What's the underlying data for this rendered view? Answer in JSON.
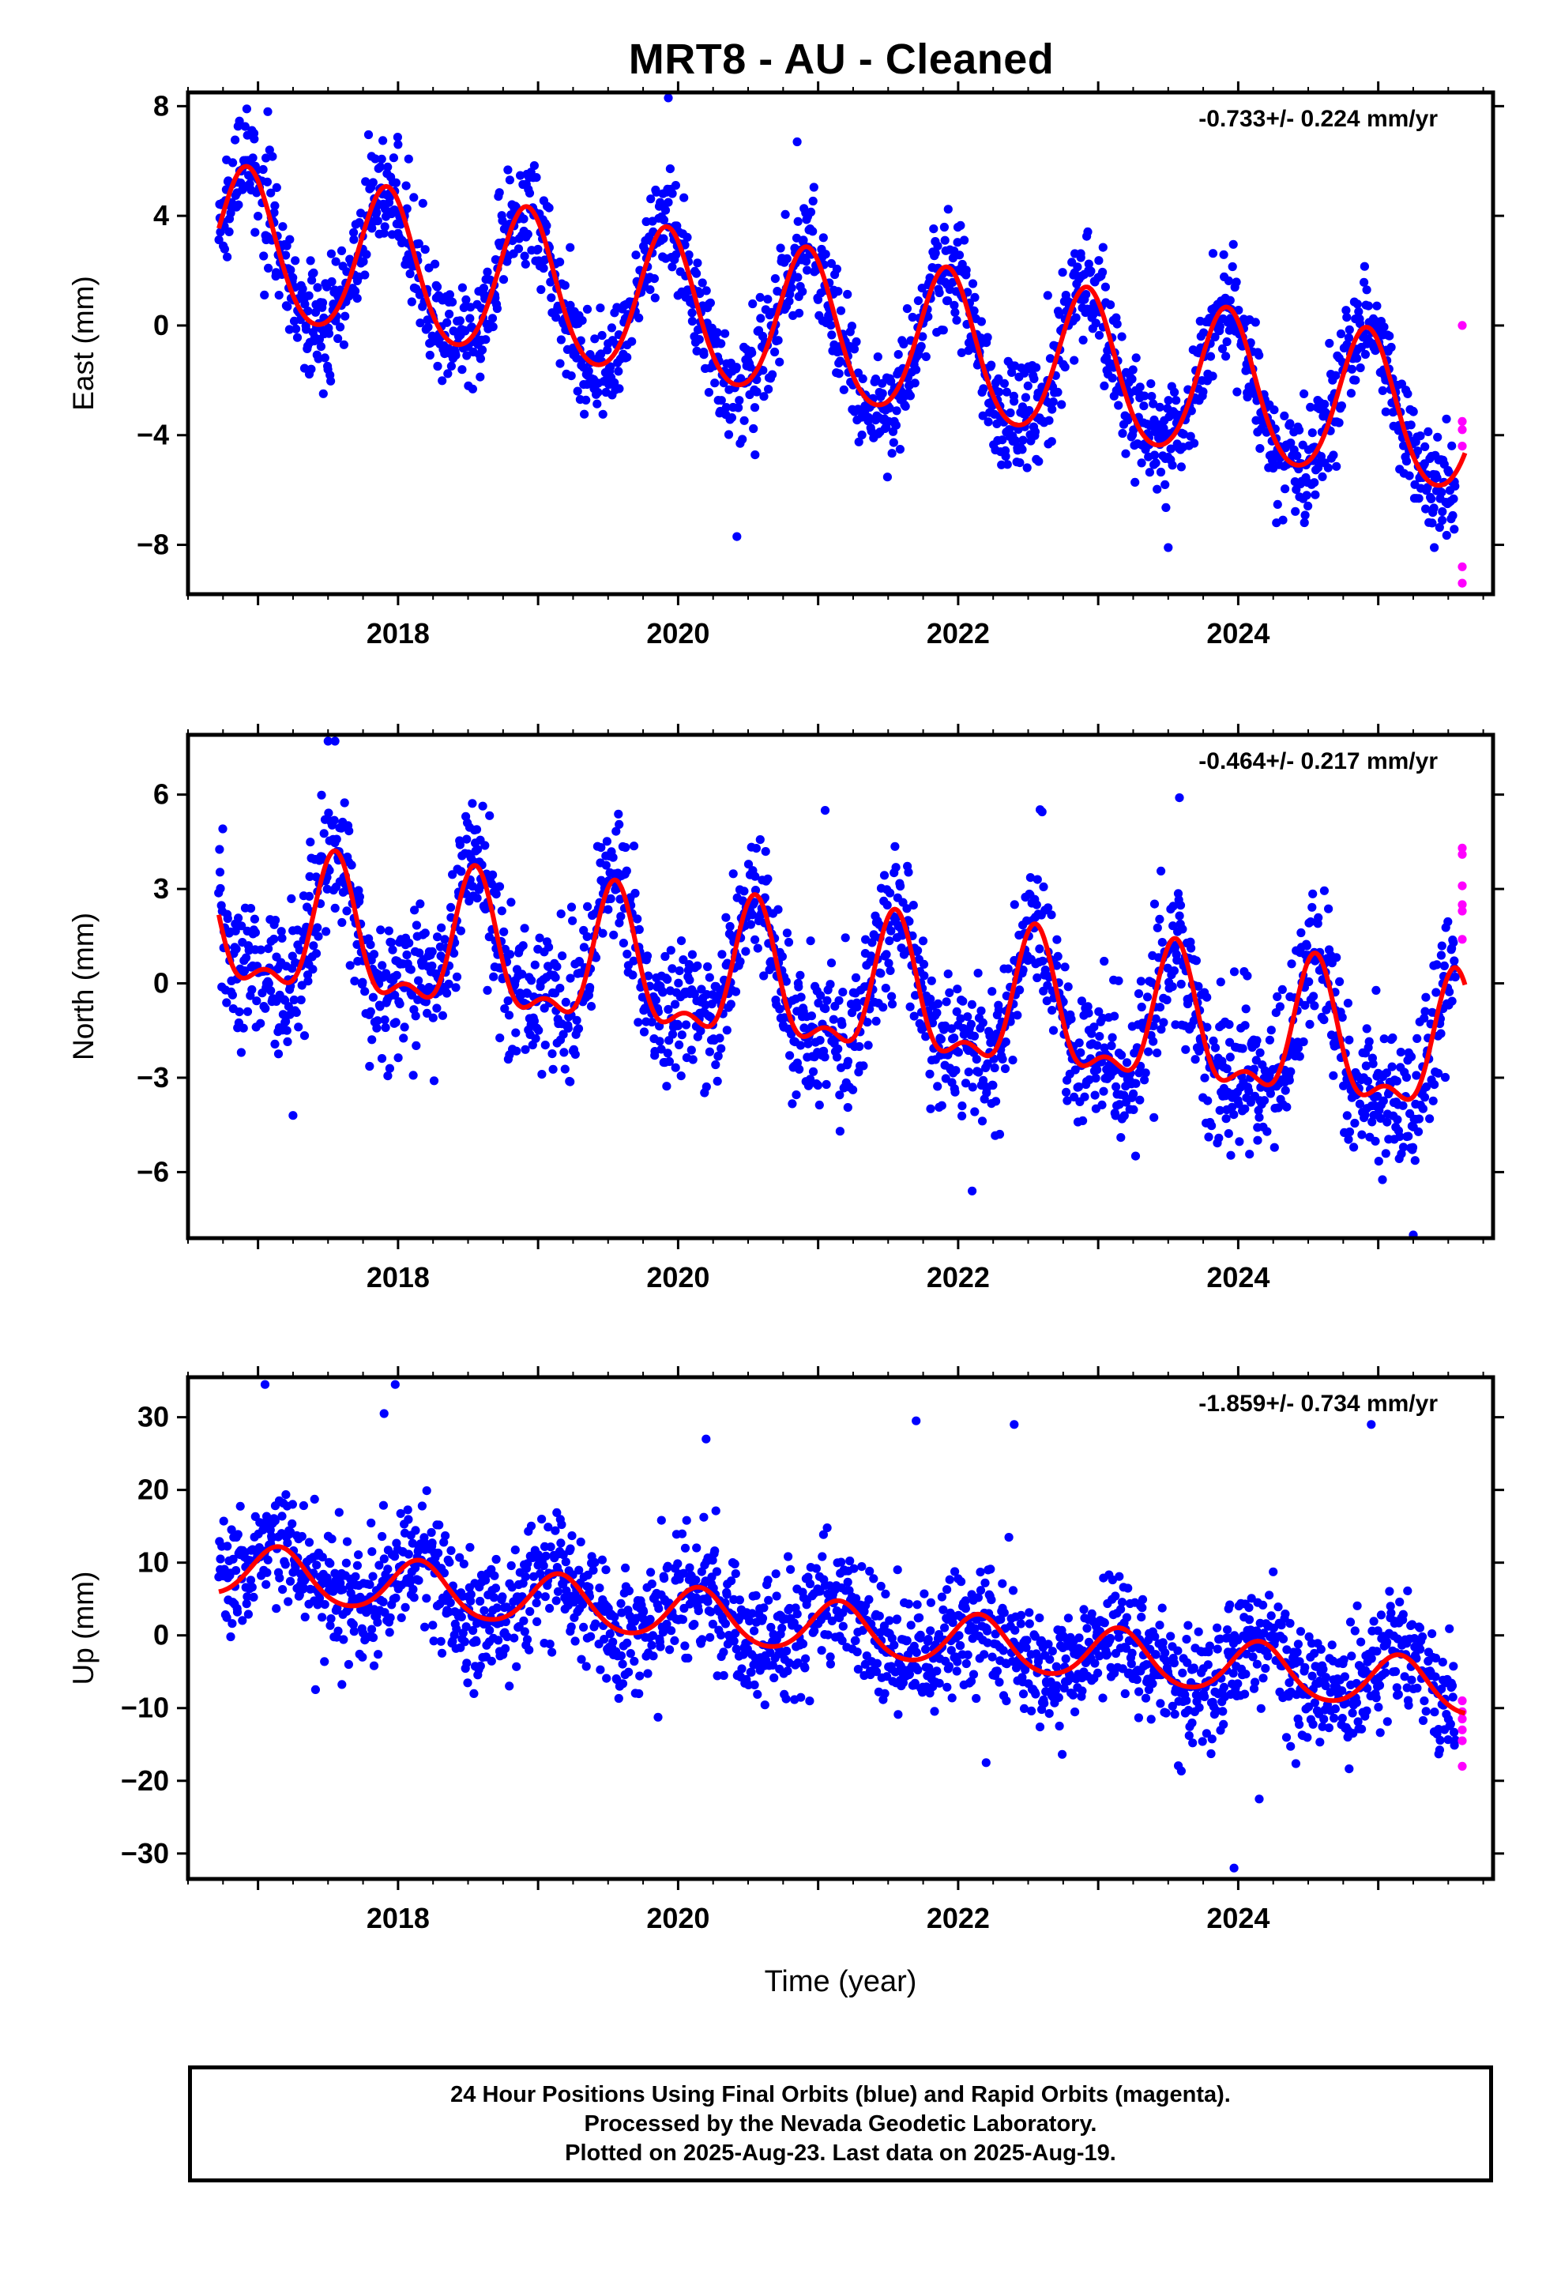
{
  "title": "MRT8  - AU - Cleaned",
  "colors": {
    "final_orbits": "#0000ff",
    "rapid_orbits": "#ff00ff",
    "model": "#ff0000",
    "frame": "#000000"
  },
  "footer": {
    "line1": "24 Hour Positions Using Final Orbits (blue) and Rapid Orbits (magenta).",
    "line2": "Processed by the Nevada Geodetic Laboratory.",
    "line3": "Plotted on 2025-Aug-23. Last data on 2025-Aug-19."
  },
  "chart_data": [
    {
      "type": "scatter",
      "ylabel": "East (mm)",
      "xlabel": "",
      "rate_label": "-0.733+/- 0.224 mm/yr",
      "xlim": [
        2016.5,
        2025.82
      ],
      "ylim": [
        -9.8,
        8.5
      ],
      "x_ticks": [
        2018,
        2020,
        2022,
        2024
      ],
      "y_ticks": [
        -8,
        -4,
        0,
        4,
        8
      ],
      "model": {
        "name": "",
        "trend": -0.733,
        "offset": 2.95,
        "annual_amp": 2.7,
        "annual_peak": 0.92,
        "semiannual_amp": 0.3,
        "semiannual_peak": 0.92,
        "noise_sd": 1.0
      },
      "series": [
        {
          "name": "",
          "color": "#0000ff",
          "x_start": 2016.72,
          "x_end": 2025.55,
          "n": 2050,
          "outliers": [
            [
              2016.92,
              7.9
            ],
            [
              2017.07,
              7.8
            ],
            [
              2019.93,
              8.3
            ],
            [
              2020.42,
              -7.7
            ],
            [
              2020.85,
              6.7
            ],
            [
              2023.5,
              -8.1
            ],
            [
              2025.4,
              -8.1
            ],
            [
              2018.0,
              6.6
            ]
          ]
        },
        {
          "name": "",
          "color": "#ff00ff",
          "points": [
            [
              2025.6,
              0.0
            ],
            [
              2025.6,
              -3.5
            ],
            [
              2025.6,
              -3.8
            ],
            [
              2025.6,
              -4.4
            ],
            [
              2025.6,
              -8.8
            ],
            [
              2025.6,
              -9.4
            ]
          ]
        }
      ]
    },
    {
      "type": "scatter",
      "ylabel": "North (mm)",
      "xlabel": "",
      "rate_label": "-0.464+/- 0.217 mm/yr",
      "xlim": [
        2016.5,
        2025.82
      ],
      "ylim": [
        -8.1,
        7.9
      ],
      "x_ticks": [
        2018,
        2020,
        2022,
        2024
      ],
      "y_ticks": [
        -6,
        -3,
        0,
        3,
        6
      ],
      "model": {
        "name": "",
        "trend": -0.464,
        "offset": 1.7,
        "annual_amp": 2.0,
        "annual_peak": 0.55,
        "semiannual_amp": 0.9,
        "semiannual_peak": 0.55,
        "noise_sd": 1.15
      },
      "series": [
        {
          "name": "",
          "color": "#0000ff",
          "x_start": 2016.72,
          "x_end": 2025.55,
          "n": 2050,
          "outliers": [
            [
              2017.5,
              7.7
            ],
            [
              2017.55,
              7.7
            ],
            [
              2021.05,
              5.5
            ],
            [
              2022.1,
              -6.6
            ],
            [
              2025.25,
              -8.0
            ],
            [
              2017.25,
              -4.2
            ],
            [
              2023.58,
              5.9
            ]
          ]
        },
        {
          "name": "",
          "color": "#ff00ff",
          "points": [
            [
              2025.6,
              4.3
            ],
            [
              2025.6,
              4.1
            ],
            [
              2025.6,
              3.1
            ],
            [
              2025.6,
              2.5
            ],
            [
              2025.6,
              2.3
            ],
            [
              2025.6,
              1.4
            ]
          ]
        }
      ]
    },
    {
      "type": "scatter",
      "ylabel": "Up (mm)",
      "xlabel": "Time (year)",
      "rate_label": "-1.859+/- 0.734 mm/yr",
      "xlim": [
        2016.5,
        2025.82
      ],
      "ylim": [
        -33.5,
        35.5
      ],
      "x_ticks": [
        2018,
        2020,
        2022,
        2024
      ],
      "y_ticks": [
        -30,
        -20,
        -10,
        0,
        10,
        20,
        30
      ],
      "model": {
        "name": "",
        "trend": -1.859,
        "offset": 9.0,
        "annual_amp": 3.6,
        "annual_peak": 0.15,
        "semiannual_amp": 0.4,
        "semiannual_peak": 0.15,
        "noise_sd": 4.3
      },
      "series": [
        {
          "name": "",
          "color": "#0000ff",
          "x_start": 2016.72,
          "x_end": 2025.55,
          "n": 2050,
          "outliers": [
            [
              2017.05,
              34.5
            ],
            [
              2017.9,
              30.5
            ],
            [
              2017.98,
              34.5
            ],
            [
              2021.7,
              29.5
            ],
            [
              2022.4,
              29.0
            ],
            [
              2023.97,
              -32.0
            ],
            [
              2024.15,
              -22.5
            ],
            [
              2024.95,
              29.0
            ],
            [
              2020.2,
              27.0
            ],
            [
              2022.2,
              -17.5
            ]
          ]
        },
        {
          "name": "",
          "color": "#ff00ff",
          "points": [
            [
              2025.6,
              -9.0
            ],
            [
              2025.6,
              -10.5
            ],
            [
              2025.6,
              -11.5
            ],
            [
              2025.6,
              -13.0
            ],
            [
              2025.6,
              -14.5
            ],
            [
              2025.6,
              -18.0
            ]
          ]
        }
      ]
    }
  ]
}
